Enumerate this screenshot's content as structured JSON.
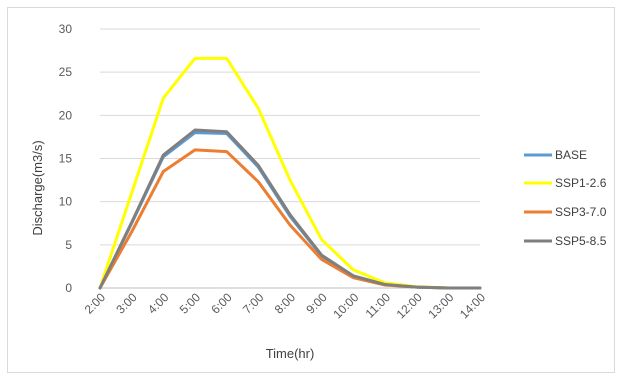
{
  "chart_data": {
    "type": "line",
    "title": "",
    "xlabel": "Time(hr)",
    "ylabel": "Discharge(m3/s)",
    "ylim": [
      0,
      30
    ],
    "yticks": [
      "0",
      "5",
      "10",
      "15",
      "20",
      "25",
      "30"
    ],
    "categories": [
      "2:00",
      "3:00",
      "4:00",
      "5:00",
      "6:00",
      "7:00",
      "8:00",
      "9:00",
      "10:00",
      "11:00",
      "12:00",
      "13:00",
      "14:00"
    ],
    "grid": "horizontal",
    "legend_position": "right",
    "series": [
      {
        "name": "BASE",
        "color": "#5b9bd5",
        "values": [
          0,
          7.5,
          15.2,
          18.0,
          17.9,
          14.0,
          8.3,
          3.7,
          1.4,
          0.4,
          0.1,
          0.0,
          0.0
        ]
      },
      {
        "name": "SSP1-2.6",
        "color": "#ffff00",
        "values": [
          0,
          11.0,
          22.0,
          26.6,
          26.6,
          20.8,
          12.5,
          5.6,
          2.1,
          0.6,
          0.15,
          0.0,
          0.0
        ]
      },
      {
        "name": "SSP3-7.0",
        "color": "#ed7d31",
        "values": [
          0,
          6.5,
          13.5,
          16.0,
          15.8,
          12.3,
          7.3,
          3.3,
          1.2,
          0.35,
          0.1,
          0.0,
          0.0
        ]
      },
      {
        "name": "SSP5-8.5",
        "color": "#7f7f7f",
        "values": [
          0,
          7.6,
          15.4,
          18.3,
          18.1,
          14.2,
          8.5,
          3.8,
          1.4,
          0.4,
          0.1,
          0.0,
          0.0
        ]
      }
    ]
  }
}
